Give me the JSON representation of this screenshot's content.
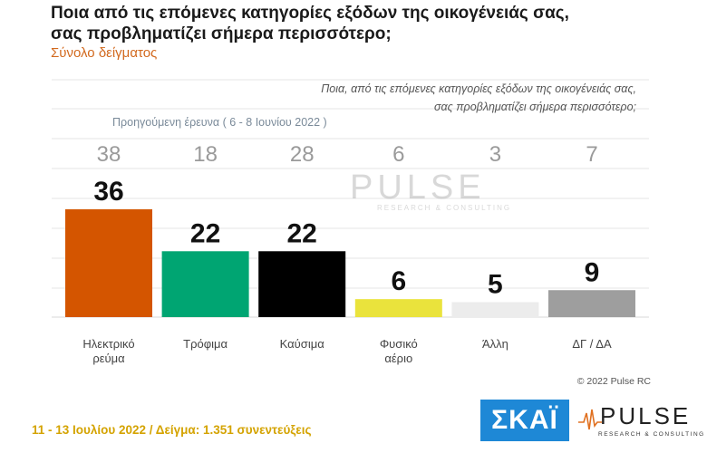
{
  "header": {
    "title_line1": "Ποια από τις επόμενες κατηγορίες εξόδων της οικογένειάς σας,",
    "title_line2": "σας προβληματίζει σήμερα περισσότερο;",
    "subtitle": "Σύνολο δείγματος"
  },
  "question_note": {
    "line1": "Ποια, από τις επόμενες κατηγορίες εξόδων της οικογένειάς σας,",
    "line2": "σας προβληματίζει σήμερα περισσότερο;"
  },
  "previous_survey_label": "Προηγούμενη έρευνα ( 6 - 8 Ιουνίου 2022 )",
  "watermark": {
    "text": "PULSE",
    "sub": "RESEARCH & CONSULTING"
  },
  "copyright": "© 2022 Pulse RC",
  "footer": "11 - 13 Ιουλίου 2022 / Δείγμα: 1.351 συνεντεύξεις",
  "logos": {
    "skai": "ΣΚΑΪ",
    "pulse": "PULSE",
    "pulse_sub": "RESEARCH & CONSULTING"
  },
  "chart_data": {
    "type": "bar",
    "categories": [
      [
        "Ηλεκτρικό",
        "ρεύμα"
      ],
      [
        "Τρόφιμα"
      ],
      [
        "Καύσιμα"
      ],
      [
        "Φυσικό",
        "αέριο"
      ],
      [
        "Άλλη"
      ],
      [
        "ΔΓ / ΔΑ"
      ]
    ],
    "series": [
      {
        "name": "",
        "values": [
          36,
          22,
          22,
          6,
          5,
          9
        ]
      },
      {
        "name": "Προηγούμενη έρευνα ( 6 - 8 Ιουνίου 2022 )",
        "values": [
          38,
          18,
          28,
          6,
          3,
          7
        ]
      }
    ],
    "colors": [
      "#d45500",
      "#00a572",
      "#000000",
      "#eae33c",
      "#ececec",
      "#9e9e9e"
    ],
    "ylim": [
      0,
      40
    ],
    "grid": true
  }
}
